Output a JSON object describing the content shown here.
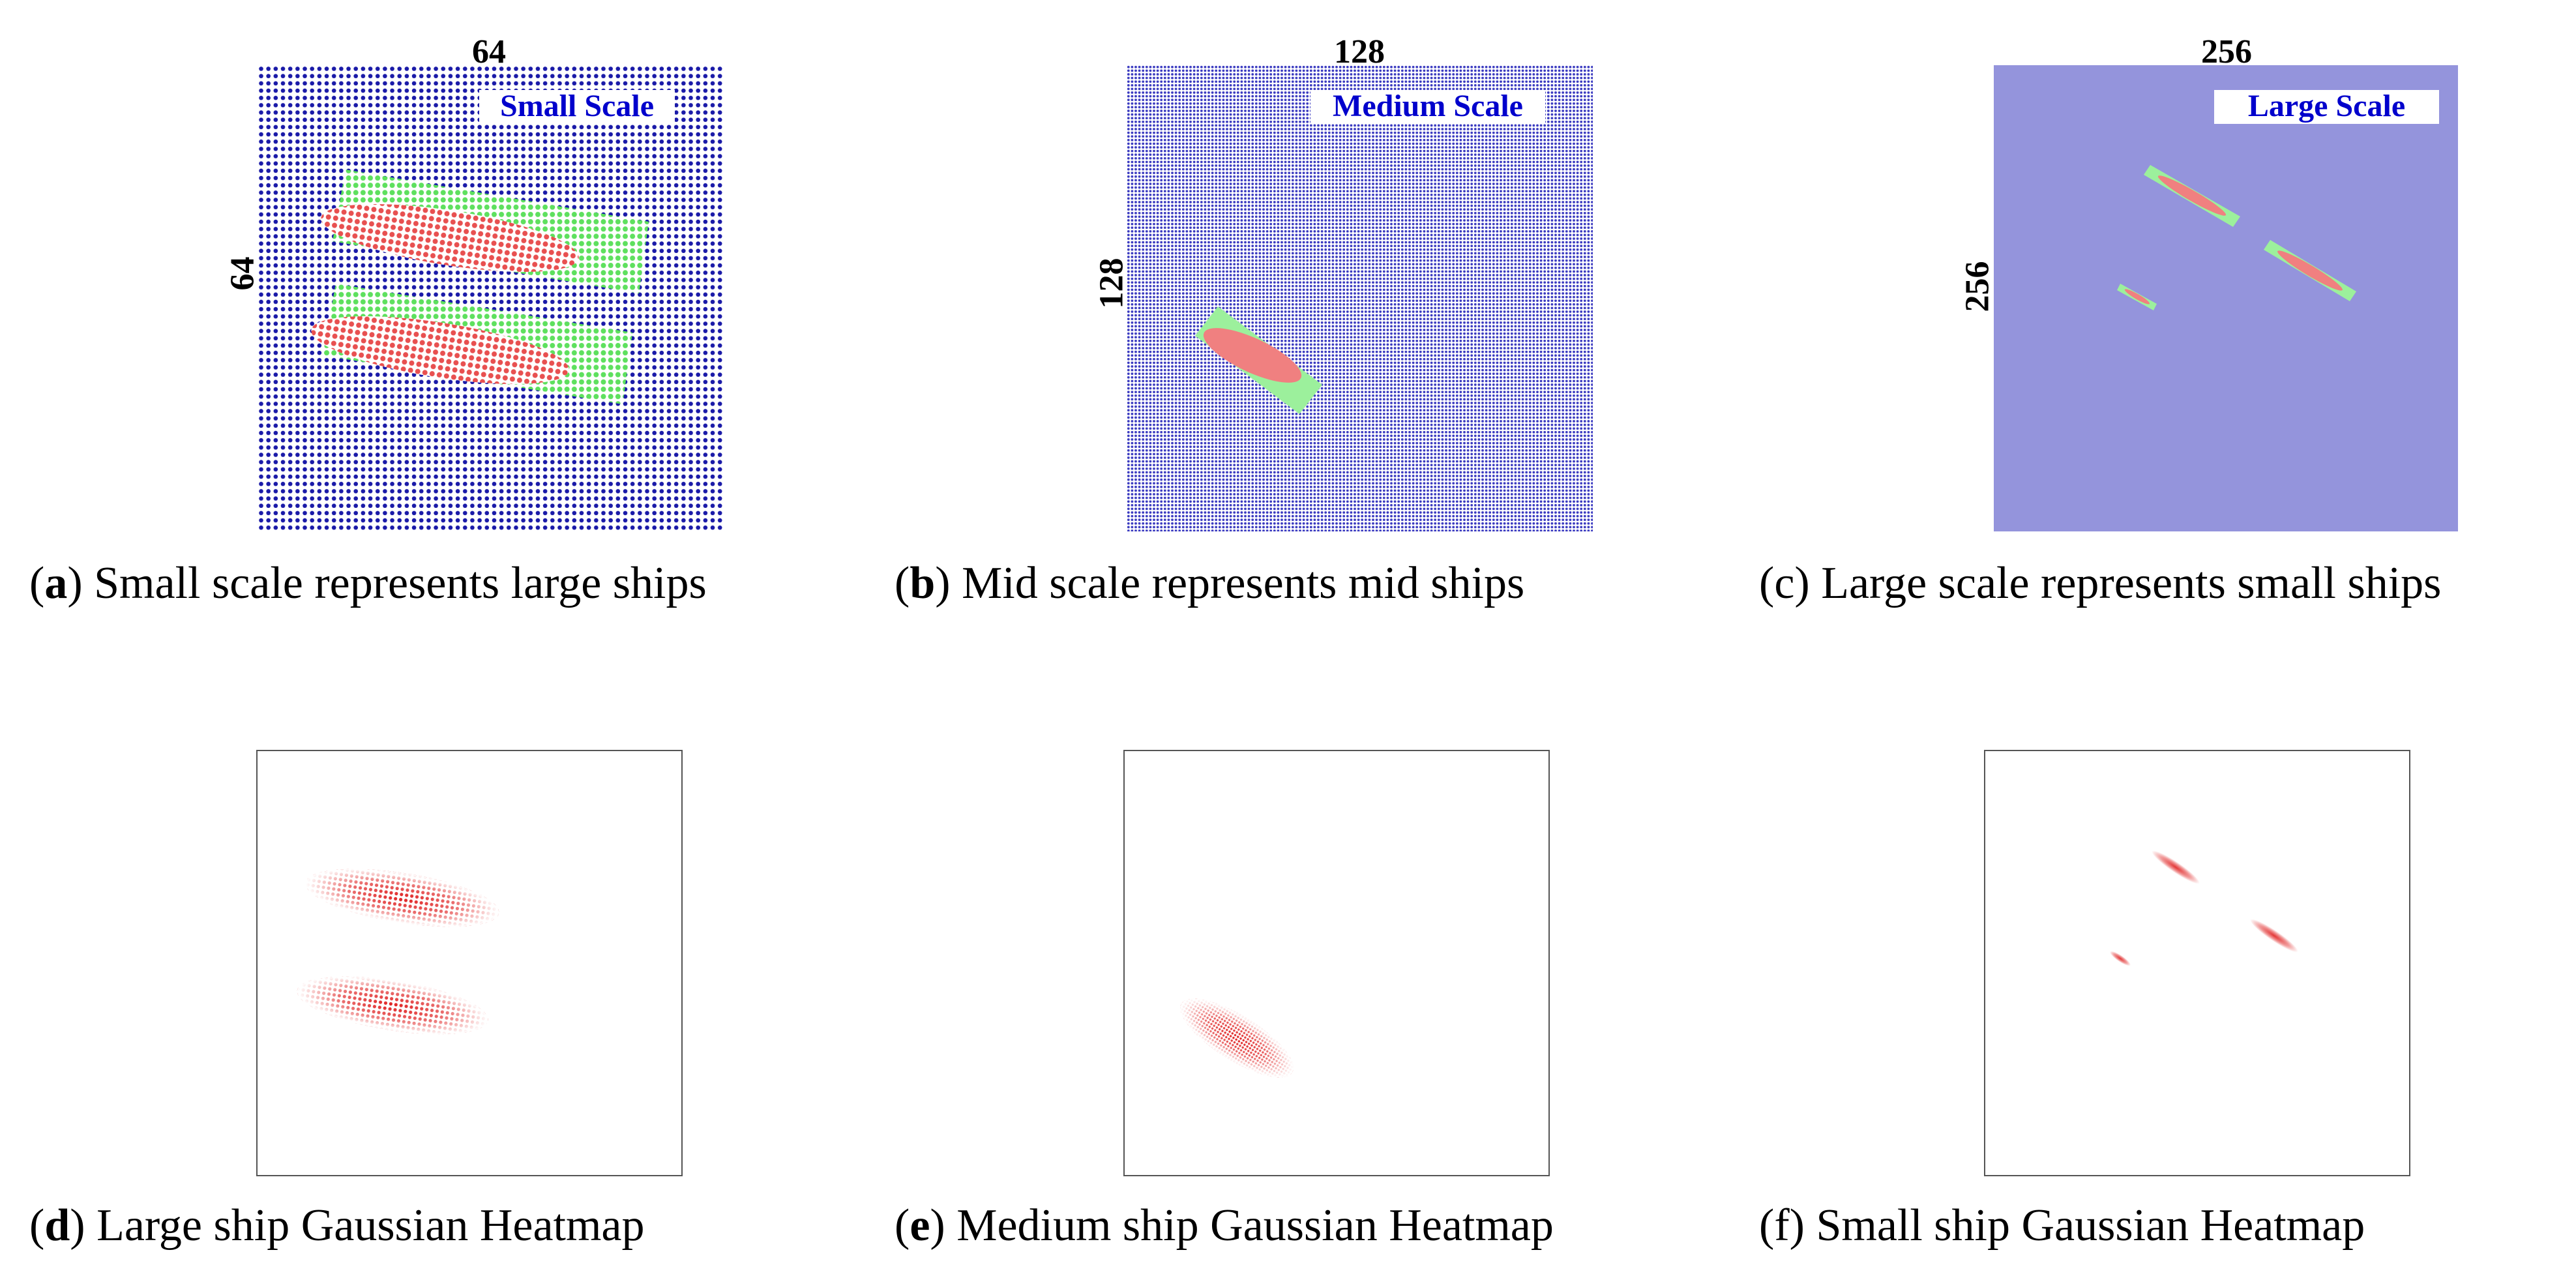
{
  "top_panels": [
    {
      "dim_top": "64",
      "dim_side": "64",
      "scale_label": "Small Scale",
      "letter": "a",
      "caption": "Small scale represents large ships"
    },
    {
      "dim_top": "128",
      "dim_side": "128",
      "scale_label": "Medium Scale",
      "letter": "b",
      "caption": "Mid scale represents mid ships"
    },
    {
      "dim_top": "256",
      "dim_side": "256",
      "scale_label": "Large Scale",
      "letter": "c",
      "caption": "Large scale represents small ships"
    }
  ],
  "bottom_panels": [
    {
      "letter": "d",
      "caption": "Large ship Gaussian Heatmap"
    },
    {
      "letter": "e",
      "caption": "Medium ship Gaussian Heatmap"
    },
    {
      "letter": "f",
      "caption": "Small ship Gaussian Heatmap"
    }
  ],
  "colors": {
    "grid_blue": "#1a1aa8",
    "grid_bg_large": "#9494dc",
    "box_green": "#9cf09c",
    "ellipse_red": "#f08080",
    "heat_red": "#e02020",
    "label_blue": "#0000cc"
  }
}
